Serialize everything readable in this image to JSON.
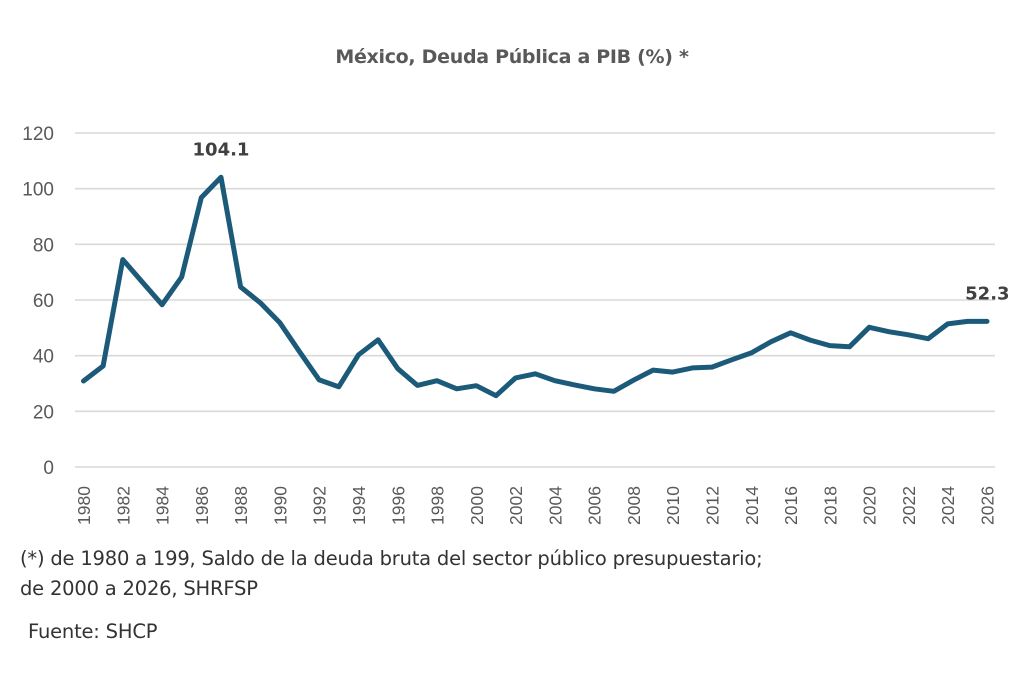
{
  "chart_data": {
    "type": "line",
    "title": "México, Deuda Pública a PIB (%) *",
    "xlabel": "",
    "ylabel": "",
    "ylim": [
      0,
      120
    ],
    "yticks": [
      0,
      20,
      40,
      60,
      80,
      100,
      120
    ],
    "grid": true,
    "legend": "none",
    "x": [
      1980,
      1981,
      1982,
      1983,
      1984,
      1985,
      1986,
      1987,
      1988,
      1989,
      1990,
      1991,
      1992,
      1993,
      1994,
      1995,
      1996,
      1997,
      1998,
      1999,
      2000,
      2001,
      2002,
      2003,
      2004,
      2005,
      2006,
      2007,
      2008,
      2009,
      2010,
      2011,
      2012,
      2013,
      2014,
      2015,
      2016,
      2017,
      2018,
      2019,
      2020,
      2021,
      2022,
      2023,
      2024,
      2025,
      2026
    ],
    "xtick_labels": [
      "1980",
      "1982",
      "1984",
      "1986",
      "1988",
      "1990",
      "1992",
      "1994",
      "1996",
      "1998",
      "2000",
      "2002",
      "2004",
      "2006",
      "2008",
      "2010",
      "2012",
      "2014",
      "2016",
      "2018",
      "2020",
      "2022",
      "2024",
      "2026"
    ],
    "series": [
      {
        "name": "Deuda Pública a PIB (%)",
        "color": "#1c5a7a",
        "values": [
          30.9,
          36.3,
          74.5,
          66.4,
          58.3,
          68.3,
          96.8,
          104.1,
          64.7,
          59.0,
          51.8,
          41.4,
          31.3,
          28.8,
          40.3,
          45.7,
          35.3,
          29.3,
          31.0,
          28.1,
          29.2,
          25.6,
          32.0,
          33.5,
          31.0,
          29.5,
          28.1,
          27.2,
          31.2,
          34.8,
          34.1,
          35.6,
          35.9,
          38.5,
          41.0,
          45.0,
          48.2,
          45.6,
          43.6,
          43.2,
          50.2,
          48.6,
          47.5,
          46.1,
          51.4,
          52.3,
          52.3
        ]
      }
    ],
    "annotations": [
      {
        "x": 1987,
        "y": 104.1,
        "text": "104.1"
      },
      {
        "x": 2025,
        "y": 52.3,
        "text": "52.3"
      }
    ],
    "footnote": [
      "(*) de 1980 a 199, Saldo de la deuda bruta del sector público presupuestario;",
      "de 2000 a 2026, SHRFSP"
    ],
    "source": "Fuente: SHCP"
  }
}
